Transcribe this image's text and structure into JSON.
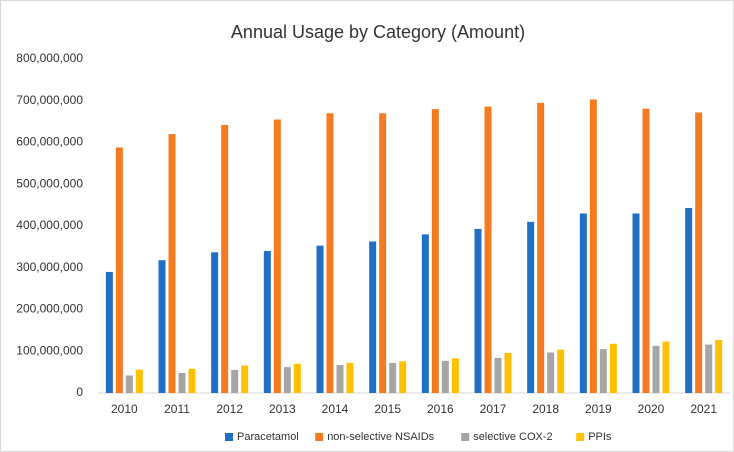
{
  "chart_data": {
    "type": "bar",
    "title": "Annual Usage by Category (Amount)",
    "categories": [
      "2010",
      "2011",
      "2012",
      "2013",
      "2014",
      "2015",
      "2016",
      "2017",
      "2018",
      "2019",
      "2020",
      "2021"
    ],
    "series": [
      {
        "name": "Paracetamol",
        "color": "#1f6fc5",
        "values": [
          290000000,
          318000000,
          337000000,
          340000000,
          353000000,
          363000000,
          380000000,
          393000000,
          410000000,
          430000000,
          430000000,
          443000000
        ]
      },
      {
        "name": "non-selective NSAIDs",
        "color": "#f47b20",
        "values": [
          588000000,
          620000000,
          642000000,
          655000000,
          670000000,
          670000000,
          680000000,
          686000000,
          695000000,
          703000000,
          681000000,
          672000000
        ]
      },
      {
        "name": "selective COX-2",
        "color": "#a5a5a5",
        "values": [
          42000000,
          48000000,
          55000000,
          62000000,
          67000000,
          72000000,
          77000000,
          84000000,
          97000000,
          105000000,
          113000000,
          116000000
        ]
      },
      {
        "name": "PPIs",
        "color": "#ffc000",
        "values": [
          56000000,
          58000000,
          66000000,
          70000000,
          72000000,
          76000000,
          83000000,
          96000000,
          104000000,
          118000000,
          123000000,
          127000000
        ]
      }
    ],
    "ylim": [
      0,
      800000000
    ],
    "yticks": [
      0,
      {
        "value": 100000000,
        "label": "100,000,000"
      },
      {
        "value": 200000000,
        "label": "200,000,000"
      },
      {
        "value": 300000000,
        "label": "300,000,000"
      },
      {
        "value": 400000000,
        "label": "400,000,000"
      },
      {
        "value": 500000000,
        "label": "500,000,000"
      },
      {
        "value": 600000000,
        "label": "600,000,000"
      },
      {
        "value": 700000000,
        "label": "700,000,000"
      },
      {
        "value": 800000000,
        "label": "800,000,000"
      }
    ],
    "grid": false,
    "legend": "bottom"
  }
}
